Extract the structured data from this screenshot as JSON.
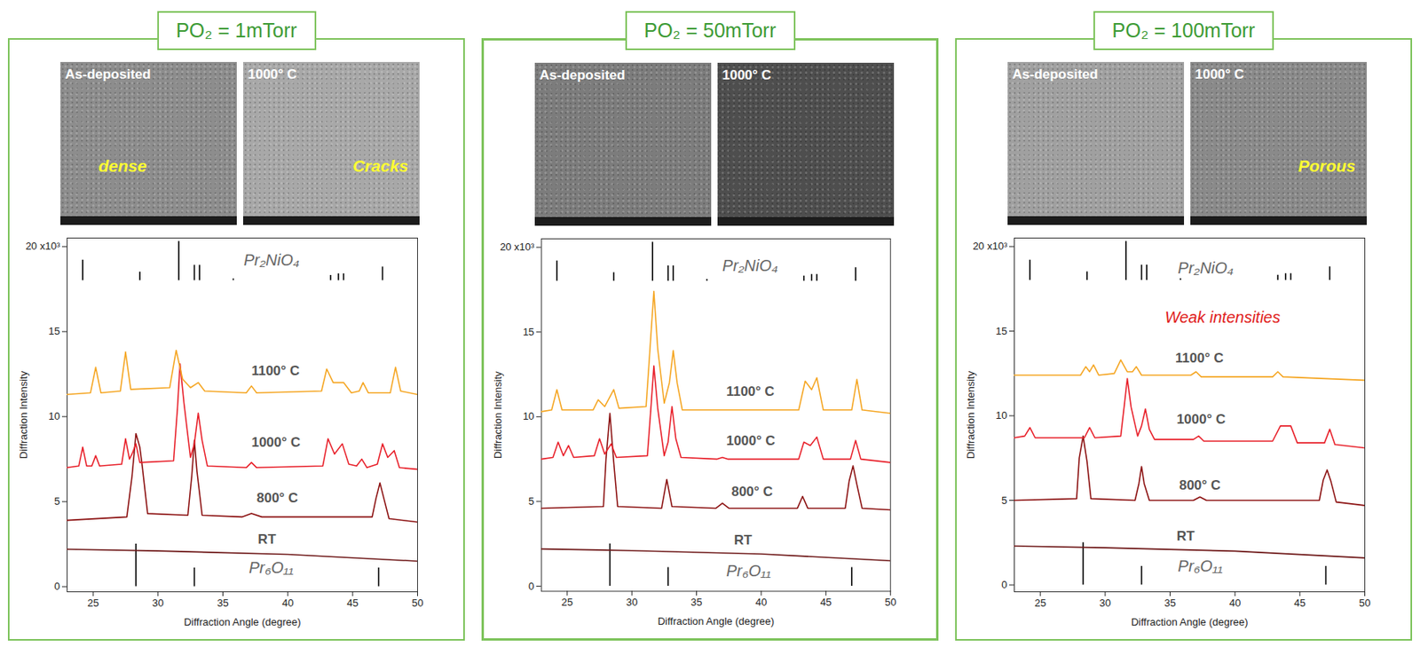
{
  "chart_data": [
    {
      "type": "line",
      "title": "PO₂ = 1mTorr",
      "images": [
        {
          "label": "As-deposited",
          "annotation": "dense"
        },
        {
          "label": "1000° C",
          "annotation": "Cracks"
        }
      ],
      "x_label": "Diffraction Angle (degree)",
      "y_label": "Diffraction Intensity",
      "xlim": [
        23,
        50
      ],
      "xticks": [
        25,
        30,
        35,
        40,
        45,
        50
      ],
      "ylim": [
        -0.3,
        20.5
      ],
      "yticks": [
        0,
        5,
        10,
        15,
        {
          "value": 20,
          "label": "20 x10³"
        }
      ],
      "series": [
        {
          "name": "Pr₂NiO₄",
          "type": "stick",
          "color": "#000000",
          "base": 18.0,
          "x": [
            24.2,
            28.6,
            31.6,
            32.8,
            33.2,
            35.8,
            43.3,
            43.9,
            44.3,
            47.3
          ],
          "values": [
            19.2,
            18.5,
            20.3,
            18.9,
            18.9,
            18.1,
            18.3,
            18.4,
            18.4,
            18.8
          ],
          "label_x": 36.6,
          "label_y": 19.2
        },
        {
          "name": "Pr₆O₁₁",
          "type": "stick",
          "color": "#000000",
          "base": 0,
          "x": [
            28.3,
            32.8,
            47.0
          ],
          "values": [
            2.5,
            1.1,
            1.1
          ],
          "label_x": 37.0,
          "label_y": 1.1
        },
        {
          "name": "RT",
          "type": "line",
          "color": "#6e1818",
          "x": [
            23,
            30,
            40,
            50
          ],
          "values": [
            2.2,
            2.1,
            1.9,
            1.5
          ],
          "label_x": 37.7,
          "label_y": 2.8
        },
        {
          "name": "800° C",
          "type": "line",
          "color": "#8b1010",
          "x": [
            23,
            27.6,
            28.0,
            28.3,
            28.6,
            28.8,
            29.2,
            32.3,
            32.6,
            32.8,
            33.0,
            33.4,
            36.5,
            37.2,
            38,
            46.5,
            46.8,
            47.1,
            47.4,
            47.8,
            50
          ],
          "values": [
            3.9,
            4.1,
            6.5,
            9.0,
            8.2,
            7.0,
            4.3,
            4.2,
            6.5,
            8.6,
            6.8,
            4.2,
            4.1,
            4.3,
            4.1,
            4.1,
            5.2,
            6.1,
            5.2,
            4.0,
            3.8
          ],
          "label_x": 37.6,
          "label_y": 5.2
        },
        {
          "name": "1000° C",
          "type": "line",
          "color": "#e8202a",
          "x": [
            23,
            23.9,
            24.2,
            24.5,
            24.9,
            25.2,
            25.5,
            27.2,
            27.5,
            27.8,
            28.0,
            28.3,
            28.6,
            31.2,
            31.5,
            31.7,
            32.0,
            32.5,
            32.8,
            33.1,
            33.4,
            33.8,
            36.8,
            37.2,
            37.6,
            42.7,
            43.1,
            43.6,
            44.2,
            44.7,
            45.3,
            45.7,
            46.1,
            46.9,
            47.3,
            47.7,
            48.2,
            48.6,
            50
          ],
          "values": [
            7.0,
            7.1,
            8.2,
            7.1,
            7.1,
            7.7,
            7.1,
            7.2,
            8.7,
            7.5,
            7.8,
            8.4,
            7.3,
            7.4,
            10.5,
            13.1,
            10.8,
            7.6,
            8.4,
            10.2,
            8.6,
            7.1,
            7.0,
            7.3,
            7.0,
            7.1,
            8.7,
            7.8,
            8.4,
            7.2,
            7.1,
            7.5,
            7.0,
            7.2,
            8.4,
            7.6,
            8.0,
            7.0,
            6.9
          ],
          "label_x": 37.2,
          "label_y": 8.5
        },
        {
          "name": "1100° C",
          "type": "line",
          "color": "#f5a623",
          "x": [
            23,
            24.8,
            25.2,
            25.6,
            27.1,
            27.5,
            27.9,
            30.9,
            31.4,
            31.9,
            32.5,
            33.1,
            33.6,
            36.8,
            37.2,
            37.6,
            42.6,
            43.0,
            43.5,
            44.3,
            44.9,
            45.5,
            45.8,
            46.2,
            47.9,
            48.3,
            48.7,
            50
          ],
          "values": [
            11.3,
            11.4,
            12.9,
            11.4,
            11.5,
            13.8,
            11.6,
            11.7,
            13.9,
            12.2,
            11.7,
            12.0,
            11.5,
            11.4,
            11.8,
            11.4,
            11.5,
            12.8,
            12.0,
            12.0,
            11.4,
            11.5,
            12.0,
            11.4,
            11.4,
            12.9,
            11.5,
            11.3
          ],
          "label_x": 37.2,
          "label_y": 12.7
        }
      ]
    },
    {
      "type": "line",
      "title": "PO₂ = 50mTorr",
      "images": [
        {
          "label": "As-deposited"
        },
        {
          "label": "1000° C"
        }
      ],
      "x_label": "Diffraction Angle (degree)",
      "y_label": "Diffraction Intensity",
      "xlim": [
        23,
        50
      ],
      "xticks": [
        25,
        30,
        35,
        40,
        45,
        50
      ],
      "ylim": [
        -0.3,
        20.5
      ],
      "yticks": [
        0,
        5,
        10,
        15,
        {
          "value": 20,
          "label": "20 x10³"
        }
      ],
      "series": [
        {
          "name": "Pr₂NiO₄",
          "type": "stick",
          "color": "#000000",
          "base": 18.0,
          "x": [
            24.2,
            28.6,
            31.6,
            32.8,
            33.2,
            35.8,
            43.3,
            43.9,
            44.3,
            47.3
          ],
          "values": [
            19.2,
            18.5,
            20.3,
            18.9,
            18.9,
            18.1,
            18.3,
            18.4,
            18.4,
            18.8
          ],
          "label_x": 37.0,
          "label_y": 18.9
        },
        {
          "name": "Pr₆O₁₁",
          "type": "stick",
          "color": "#000000",
          "base": 0,
          "x": [
            28.3,
            32.8,
            47.0
          ],
          "values": [
            2.5,
            1.1,
            1.1
          ],
          "label_x": 37.3,
          "label_y": 0.9
        },
        {
          "name": "RT",
          "type": "line",
          "color": "#6e1818",
          "x": [
            23,
            30,
            40,
            50
          ],
          "values": [
            2.2,
            2.1,
            1.9,
            1.5
          ],
          "label_x": 37.9,
          "label_y": 2.7
        },
        {
          "name": "800° C",
          "type": "line",
          "color": "#8b1010",
          "x": [
            23,
            27.8,
            28.0,
            28.3,
            28.6,
            28.9,
            32.3,
            32.7,
            33.1,
            36.5,
            37.0,
            37.5,
            42.8,
            43.2,
            43.6,
            46.5,
            46.8,
            47.1,
            47.4,
            47.8,
            50
          ],
          "values": [
            4.6,
            4.7,
            7.5,
            10.2,
            7.3,
            4.7,
            4.6,
            6.3,
            4.7,
            4.6,
            4.9,
            4.6,
            4.6,
            5.3,
            4.6,
            4.6,
            6.2,
            7.1,
            6.0,
            4.6,
            4.5
          ],
          "label_x": 37.7,
          "label_y": 5.6
        },
        {
          "name": "1000° C",
          "type": "line",
          "color": "#e8202a",
          "x": [
            23,
            23.9,
            24.3,
            24.7,
            25.1,
            25.5,
            27.1,
            27.5,
            27.9,
            28.4,
            28.8,
            31.2,
            31.5,
            31.7,
            32.0,
            32.5,
            32.8,
            33.1,
            33.4,
            33.8,
            36.6,
            37.0,
            37.4,
            42.9,
            43.3,
            43.8,
            44.3,
            44.8,
            46.9,
            47.3,
            47.7,
            50
          ],
          "values": [
            7.5,
            7.6,
            8.5,
            7.7,
            8.3,
            7.6,
            7.7,
            8.7,
            7.8,
            8.4,
            7.6,
            7.7,
            10.8,
            13.0,
            10.5,
            7.7,
            8.5,
            10.6,
            8.7,
            7.6,
            7.5,
            7.6,
            7.5,
            7.5,
            8.5,
            8.3,
            8.8,
            7.5,
            7.5,
            8.6,
            7.5,
            7.3
          ],
          "label_x": 37.3,
          "label_y": 8.6
        },
        {
          "name": "1100° C",
          "type": "line",
          "color": "#f5a623",
          "x": [
            23,
            23.8,
            24.2,
            24.6,
            27.0,
            27.4,
            27.9,
            28.6,
            29.0,
            31.1,
            31.4,
            31.7,
            32.0,
            32.5,
            32.9,
            33.2,
            33.5,
            33.9,
            42.9,
            43.4,
            43.9,
            44.3,
            44.8,
            47.0,
            47.4,
            47.8,
            50
          ],
          "values": [
            10.3,
            10.4,
            11.6,
            10.4,
            10.4,
            11.0,
            10.6,
            11.6,
            10.5,
            10.6,
            14.0,
            17.4,
            14.0,
            10.8,
            12.0,
            13.9,
            12.0,
            10.4,
            10.4,
            12.1,
            11.6,
            12.3,
            10.4,
            10.4,
            12.2,
            10.4,
            10.2
          ],
          "label_x": 37.3,
          "label_y": 11.5
        }
      ]
    },
    {
      "type": "line",
      "title": "PO₂ = 100mTorr",
      "images": [
        {
          "label": "As-deposited"
        },
        {
          "label": "1000° C",
          "annotation": "Porous"
        }
      ],
      "x_label": "Diffraction Angle (degree)",
      "y_label": "Diffraction Intensity",
      "xlim": [
        23,
        50
      ],
      "xticks": [
        25,
        30,
        35,
        40,
        45,
        50
      ],
      "ylim": [
        -0.4,
        20.5
      ],
      "yticks": [
        0,
        5,
        10,
        15,
        {
          "value": 20,
          "label": "20 x10³"
        }
      ],
      "annotations": [
        {
          "text": "Weak intensities",
          "x": 34.6,
          "y": 15.8,
          "color": "#e0201b"
        }
      ],
      "series": [
        {
          "name": "Pr₂NiO₄",
          "type": "stick",
          "color": "#000000",
          "base": 18.0,
          "x": [
            24.2,
            28.6,
            31.6,
            32.8,
            33.2,
            35.8,
            43.3,
            43.9,
            44.3,
            47.3
          ],
          "values": [
            19.2,
            18.5,
            20.3,
            18.9,
            18.9,
            18.1,
            18.3,
            18.4,
            18.4,
            18.8
          ],
          "label_x": 35.6,
          "label_y": 18.7
        },
        {
          "name": "Pr₆O₁₁",
          "type": "stick",
          "color": "#000000",
          "base": 0,
          "x": [
            28.3,
            32.8,
            47.0
          ],
          "values": [
            2.5,
            1.1,
            1.1
          ],
          "label_x": 35.6,
          "label_y": 1.1
        },
        {
          "name": "RT",
          "type": "line",
          "color": "#6e1818",
          "x": [
            23,
            30,
            40,
            50
          ],
          "values": [
            2.3,
            2.2,
            2.0,
            1.6
          ],
          "label_x": 35.5,
          "label_y": 2.9
        },
        {
          "name": "800° C",
          "type": "line",
          "color": "#8b1010",
          "x": [
            23,
            27.8,
            28.0,
            28.3,
            28.6,
            28.9,
            32.3,
            32.6,
            32.8,
            33.0,
            33.4,
            36.8,
            37.3,
            37.8,
            46.5,
            46.8,
            47.1,
            47.4,
            47.8,
            50
          ],
          "values": [
            5.0,
            5.1,
            7.5,
            8.8,
            7.3,
            5.1,
            5.0,
            6.0,
            7.0,
            6.0,
            5.0,
            5.0,
            5.2,
            5.0,
            5.0,
            6.2,
            6.8,
            6.1,
            4.9,
            4.7
          ],
          "label_x": 35.7,
          "label_y": 5.9
        },
        {
          "name": "1000° C",
          "type": "line",
          "color": "#e8202a",
          "x": [
            23,
            23.8,
            24.2,
            24.6,
            28.4,
            28.8,
            29.2,
            31.2,
            31.5,
            31.7,
            32.0,
            32.5,
            32.8,
            33.1,
            33.4,
            33.8,
            36.8,
            37.2,
            37.6,
            42.9,
            43.5,
            44.3,
            44.8,
            46.9,
            47.3,
            47.7,
            50
          ],
          "values": [
            8.7,
            8.8,
            9.3,
            8.7,
            8.7,
            9.3,
            8.7,
            8.8,
            10.8,
            12.2,
            10.5,
            8.8,
            9.4,
            10.4,
            9.2,
            8.6,
            8.6,
            8.8,
            8.5,
            8.5,
            9.4,
            9.4,
            8.4,
            8.4,
            9.2,
            8.3,
            8.1
          ],
          "label_x": 35.5,
          "label_y": 9.8
        },
        {
          "name": "1100° C",
          "type": "line",
          "color": "#f5a623",
          "x": [
            23,
            28.1,
            28.5,
            28.8,
            29.1,
            29.5,
            30.7,
            31.2,
            31.7,
            32.1,
            32.4,
            32.8,
            36.6,
            37.0,
            37.4,
            42.9,
            43.3,
            43.7,
            50
          ],
          "values": [
            12.4,
            12.4,
            12.9,
            12.6,
            13.0,
            12.4,
            12.5,
            13.3,
            12.6,
            12.6,
            12.9,
            12.4,
            12.4,
            12.6,
            12.3,
            12.3,
            12.6,
            12.3,
            12.1
          ],
          "label_x": 35.4,
          "label_y": 13.4
        }
      ]
    }
  ]
}
